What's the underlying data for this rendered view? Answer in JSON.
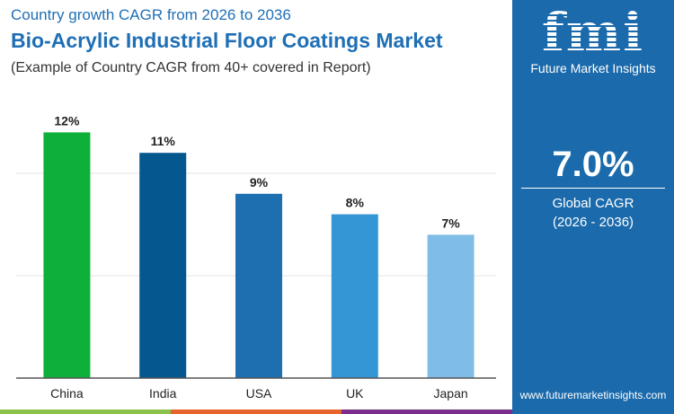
{
  "header": {
    "subtitle": "Country growth CAGR from 2026 to 2036",
    "title": "Bio-Acrylic Industrial Floor Coatings Market",
    "note": "(Example of Country CAGR from 40+ covered in Report)"
  },
  "panel": {
    "logo_text": "fmi",
    "logo_name": "Future Market Insights",
    "value": "7.0%",
    "label": "Global CAGR",
    "period": "(2026 - 2036)",
    "url": "www.futuremarketinsights.com"
  },
  "colors": {
    "panel": "#1b6aab",
    "strip": [
      "#8bc34a",
      "#e8622c",
      "#7b2d8b"
    ]
  },
  "chart_data": {
    "type": "bar",
    "categories": [
      "China",
      "India",
      "USA",
      "UK",
      "Japan"
    ],
    "values": [
      12,
      11,
      9,
      8,
      7
    ],
    "labels": [
      "12%",
      "11%",
      "9%",
      "8%",
      "7%"
    ],
    "colors": [
      "#0fb03a",
      "#05588f",
      "#1d6faf",
      "#3596d6",
      "#80bde6"
    ],
    "ylim": [
      0,
      15
    ],
    "grid": true,
    "title": "",
    "xlabel": "",
    "ylabel": ""
  }
}
